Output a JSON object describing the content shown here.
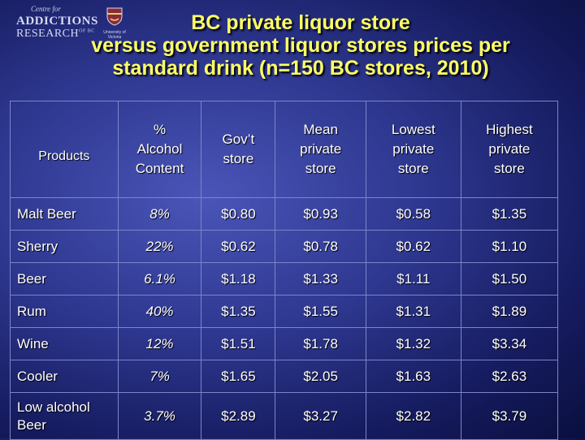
{
  "logo": {
    "line1": "Centre for",
    "line2": "ADDICTIONS",
    "line3": "RESEARCH",
    "line3_sub": "OF BC",
    "uvic": "University of Victoria"
  },
  "title": {
    "line1": "BC private liquor store",
    "line2": "versus government liquor stores prices per",
    "line3": "standard drink (n=150 BC stores, 2010)"
  },
  "table": {
    "headers": {
      "products": "Products",
      "alcohol_1": "%",
      "alcohol_2": "Alcohol",
      "alcohol_3": "Content",
      "gov_1": "Gov’t",
      "gov_2": "store",
      "mean_1": "Mean",
      "mean_2": "private",
      "mean_3": "store",
      "low_1": "Lowest",
      "low_2": "private",
      "low_3": "store",
      "high_1": "Highest",
      "high_2": "private",
      "high_3": "store"
    },
    "rows": [
      {
        "product": "Malt Beer",
        "alcohol": "8%",
        "gov": "$0.80",
        "mean": "$0.93",
        "lowest": "$0.58",
        "highest": "$1.35"
      },
      {
        "product": "Sherry",
        "alcohol": "22%",
        "gov": "$0.62",
        "mean": "$0.78",
        "lowest": "$0.62",
        "highest": "$1.10"
      },
      {
        "product": "Beer",
        "alcohol": "6.1%",
        "gov": "$1.18",
        "mean": "$1.33",
        "lowest": "$1.11",
        "highest": "$1.50"
      },
      {
        "product": "Rum",
        "alcohol": "40%",
        "gov": "$1.35",
        "mean": "$1.55",
        "lowest": "$1.31",
        "highest": "$1.89"
      },
      {
        "product": "Wine",
        "alcohol": "12%",
        "gov": "$1.51",
        "mean": "$1.78",
        "lowest": "$1.32",
        "highest": "$3.34"
      },
      {
        "product": "Cooler",
        "alcohol": "7%",
        "gov": "$1.65",
        "mean": "$2.05",
        "lowest": "$1.63",
        "highest": "$2.63"
      },
      {
        "product_1": "Low alcohol",
        "product_2": "Beer",
        "alcohol": "3.7%",
        "gov": "$2.89",
        "mean": "$3.27",
        "lowest": "$2.82",
        "highest": "$3.79"
      }
    ]
  },
  "colors": {
    "title": "#ffff66",
    "text": "#ffffff",
    "background": "#2e3890",
    "grid": "#7c85c9"
  }
}
